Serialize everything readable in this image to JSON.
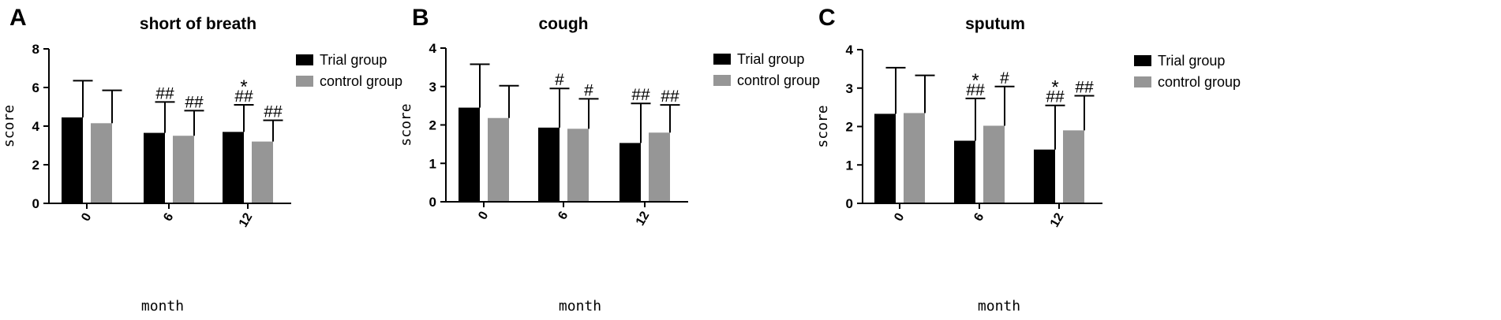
{
  "colors": {
    "trial": "#000000",
    "control": "#969696",
    "axis": "#000000"
  },
  "chart_data": [
    {
      "type": "bar",
      "panel": "A",
      "title": "short of breath",
      "xlabel": "month",
      "ylabel": "score",
      "ylim": [
        0,
        8
      ],
      "yticks": [
        0,
        2,
        4,
        6,
        8
      ],
      "categories": [
        "0",
        "6",
        "12"
      ],
      "legend_position": "right",
      "series": [
        {
          "name": "Trial group",
          "values": [
            4.45,
            3.65,
            3.7
          ],
          "errors": [
            1.9,
            1.6,
            1.4
          ],
          "annotations": [
            "",
            "##",
            "*\n##"
          ]
        },
        {
          "name": "control group",
          "values": [
            4.15,
            3.5,
            3.2
          ],
          "errors": [
            1.7,
            1.3,
            1.1
          ],
          "annotations": [
            "",
            "##",
            "##"
          ]
        }
      ]
    },
    {
      "type": "bar",
      "panel": "B",
      "title": "cough",
      "xlabel": "month",
      "ylabel": "score",
      "ylim": [
        0,
        4
      ],
      "yticks": [
        0,
        1,
        2,
        3,
        4
      ],
      "categories": [
        "0",
        "6",
        "12"
      ],
      "legend_position": "right",
      "series": [
        {
          "name": "Trial group",
          "values": [
            2.45,
            1.93,
            1.53
          ],
          "errors": [
            1.13,
            1.02,
            1.03
          ],
          "annotations": [
            "",
            "#",
            "##"
          ]
        },
        {
          "name": "control group",
          "values": [
            2.18,
            1.9,
            1.8
          ],
          "errors": [
            0.84,
            0.78,
            0.72
          ],
          "annotations": [
            "",
            "#",
            "##"
          ]
        }
      ]
    },
    {
      "type": "bar",
      "panel": "C",
      "title": "sputum",
      "xlabel": "month",
      "ylabel": "score",
      "ylim": [
        0,
        4
      ],
      "yticks": [
        0,
        1,
        2,
        3,
        4
      ],
      "categories": [
        "0",
        "6",
        "12"
      ],
      "legend_position": "right",
      "series": [
        {
          "name": "Trial group",
          "values": [
            2.33,
            1.63,
            1.4
          ],
          "errors": [
            1.2,
            1.1,
            1.15
          ],
          "annotations": [
            "",
            "*\n##",
            "*\n##"
          ]
        },
        {
          "name": "control group",
          "values": [
            2.35,
            2.02,
            1.9
          ],
          "errors": [
            0.98,
            1.02,
            0.9
          ],
          "annotations": [
            "",
            "#",
            "##"
          ]
        }
      ]
    }
  ]
}
